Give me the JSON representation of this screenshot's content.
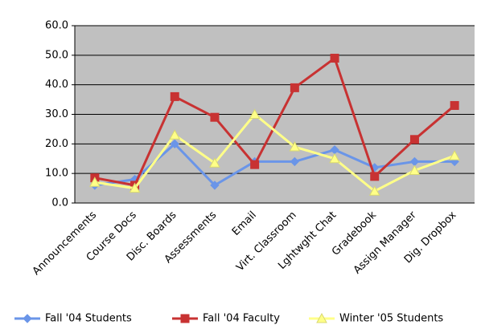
{
  "chart_data": {
    "type": "line",
    "categories": [
      "Announcements",
      "Course Docs",
      "Disc. Boards",
      "Assessments",
      "Email",
      "Virt. Classroom",
      "Lghtwght Chat",
      "Gradebook",
      "Assign Manager",
      "Dig. Dropbox"
    ],
    "series": [
      {
        "name": "Fall '04 Students",
        "color": "#6a95e8",
        "marker": "diamond",
        "values": [
          6,
          8,
          20,
          6,
          14,
          14,
          18,
          12,
          14,
          14
        ]
      },
      {
        "name": "Fall '04 Faculty",
        "color": "#c83232",
        "marker": "square",
        "values": [
          8.5,
          6,
          36,
          29,
          13,
          39,
          49,
          9,
          21.5,
          33
        ]
      },
      {
        "name": "Winter '05 Students",
        "color": "#ffff88",
        "marker": "triangle",
        "values": [
          7,
          5,
          23,
          13.5,
          30,
          19,
          15,
          4,
          11,
          16
        ]
      }
    ],
    "ylim": [
      0,
      60
    ],
    "yticks": [
      {
        "value": 0,
        "label": "0.0"
      },
      {
        "value": 10,
        "label": "10.0"
      },
      {
        "value": 20,
        "label": "20.0"
      },
      {
        "value": 30,
        "label": "30.0"
      },
      {
        "value": 40,
        "label": "40.0"
      },
      {
        "value": 50,
        "label": "50.0"
      },
      {
        "value": 60,
        "label": "60.0"
      }
    ],
    "grid": true,
    "legend": "bottom"
  }
}
